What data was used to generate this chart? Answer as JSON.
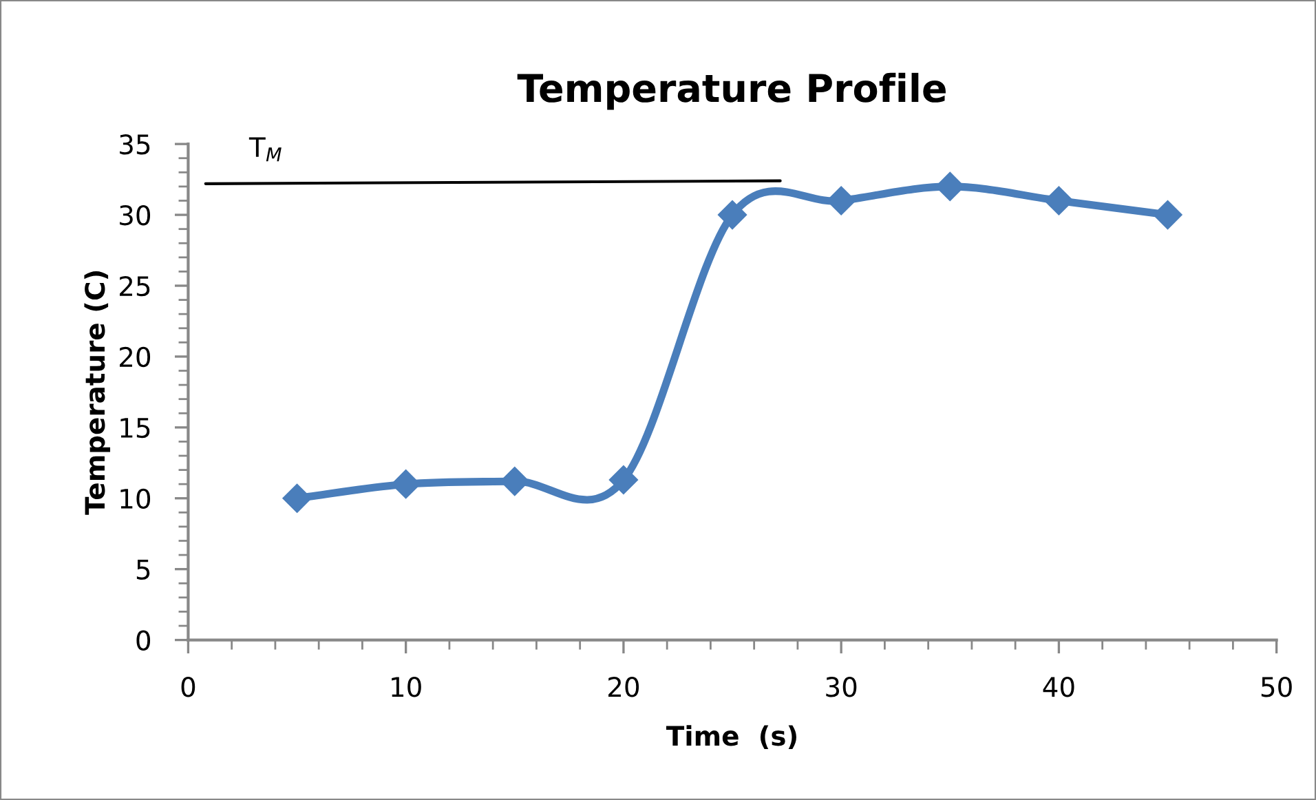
{
  "chart_data": {
    "type": "line",
    "title": "Temperature Profile",
    "xlabel": "Time  (s)",
    "ylabel": "Temperature (C)",
    "x": [
      5,
      10,
      15,
      20,
      25,
      30,
      35,
      40,
      45
    ],
    "series": [
      {
        "color": "#4a7ebb",
        "values": [
          10,
          11,
          11.2,
          11.3,
          30,
          31,
          32,
          31,
          30
        ],
        "marker": "diamond",
        "line_style": "solid"
      },
      {
        "name": "T$_{M}$",
        "color": "#000000",
        "x": [
          0.8,
          27.2
        ],
        "values": [
          32.2,
          32.4
        ],
        "marker": "none",
        "line_style": "solid"
      }
    ],
    "xlim": [
      0,
      50
    ],
    "xticks": [
      0,
      10,
      20,
      30,
      40,
      50
    ],
    "ylim": [
      0,
      35
    ],
    "yticks": [
      0,
      5,
      10,
      15,
      20,
      25,
      30,
      35
    ],
    "grid": false,
    "legend": false
  }
}
